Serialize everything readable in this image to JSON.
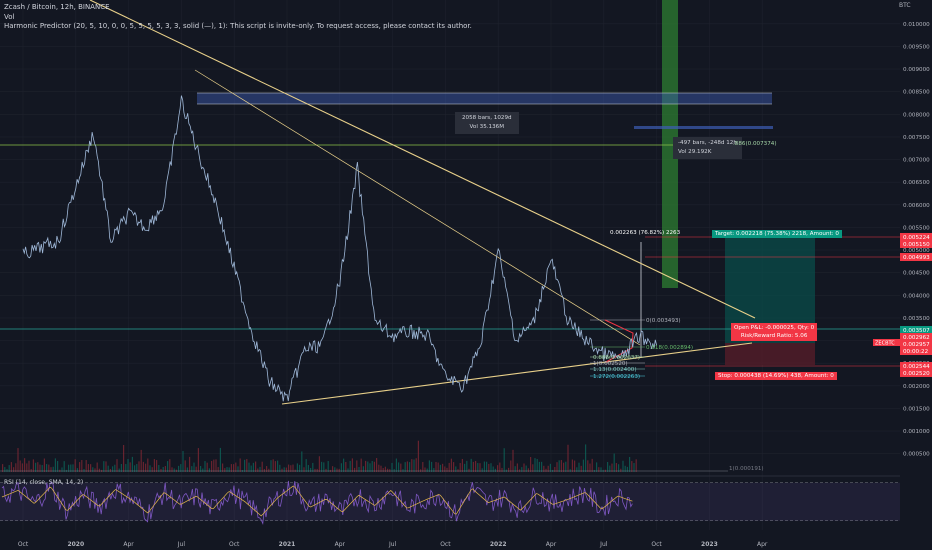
{
  "header": {
    "symbol": "Zcash / Bitcoin, 12h, BINANCE",
    "volume": "Vol",
    "indicator": "Harmonic Predictor (20, 5, 10, 0, 0, 5, 5, 5, 5, 3, 3, solid (—), 1): This script is invite-only. To request access, please contact its author."
  },
  "chart_data": {
    "type": "line",
    "symbol": "ZECBTC",
    "price_axis": {
      "unit": "BTC",
      "ticks": [
        "0.010000",
        "0.009500",
        "0.009000",
        "0.008500",
        "0.008000",
        "0.007500",
        "0.007000",
        "0.006500",
        "0.006000",
        "0.005500",
        "0.005000",
        "0.004500",
        "0.004000",
        "0.003500",
        "0.003000",
        "0.002500",
        "0.002000",
        "0.001500",
        "0.001000",
        "0.000500"
      ],
      "ylim": [
        0.00025,
        0.01035
      ]
    },
    "time_axis": {
      "ticks": [
        "Oct",
        "2020",
        "Apr",
        "Jul",
        "Oct",
        "2021",
        "Apr",
        "Jul",
        "Oct",
        "2022",
        "Apr",
        "Jul",
        "Oct",
        "2023",
        "Apr"
      ]
    },
    "series": [
      {
        "name": "ZECBTC",
        "x": [
          "2019-10",
          "2019-12",
          "2020-01",
          "2020-02",
          "2020-03",
          "2020-04",
          "2020-05",
          "2020-06",
          "2020-07",
          "2020-08",
          "2020-09",
          "2020-10",
          "2020-11",
          "2020-12",
          "2021-01",
          "2021-02",
          "2021-03",
          "2021-04",
          "2021-05",
          "2021-06",
          "2021-07",
          "2021-08",
          "2021-09",
          "2021-10",
          "2021-11",
          "2021-12",
          "2022-01",
          "2022-02",
          "2022-03",
          "2022-04",
          "2022-05",
          "2022-06",
          "2022-07",
          "2022-08",
          "2022-09",
          "2022-10"
        ],
        "values": [
          0.0049,
          0.0052,
          0.0064,
          0.0076,
          0.0052,
          0.0058,
          0.0055,
          0.006,
          0.0083,
          0.0071,
          0.006,
          0.0046,
          0.0032,
          0.0021,
          0.0017,
          0.0028,
          0.0029,
          0.0043,
          0.0068,
          0.0034,
          0.0031,
          0.0032,
          0.0031,
          0.0022,
          0.002,
          0.0029,
          0.005,
          0.003,
          0.0034,
          0.0048,
          0.0034,
          0.003,
          0.0027,
          0.0026,
          0.0031,
          0.0029
        ]
      }
    ],
    "annotations": {
      "range_box_1": {
        "bars": "2058 bars, 1029d",
        "volume": "Vol 35.136M"
      },
      "range_box_2": {
        "bars": "-497 bars, -248d 12h",
        "volume": "Vol 29.192K"
      },
      "fib_level_label": ".886(0.007374)",
      "measure_label": "0.002263 (76.82%) 2263",
      "target_label": "Target: 0.002218 (75.38%) 2218, Amount: 0",
      "open_pnl_label": "Open P&L: -0.000025, Qty: 0",
      "risk_reward_label": "Risk/Reward Ratio: 5.06",
      "stop_label": "Stop: 0.000438 (14.69%) 438, Amount: 0",
      "fib_retracements": [
        "0(0.003493)",
        "0.618(0.002894)",
        "0.886(0.002637)",
        "1(0.002520)",
        "1.13(0.002400)",
        "1.272(0.002263)"
      ],
      "volume_ref_label": "1(0.000191)"
    },
    "price_tags": [
      {
        "value": "0.005224",
        "color": "#f23645"
      },
      {
        "value": "0.005150",
        "color": "#f23645"
      },
      {
        "value": "0.004993",
        "color": "#f23645"
      },
      {
        "value": "0.003507",
        "color": "#089981"
      },
      {
        "value": "0.002962",
        "color": "#f23645"
      },
      {
        "value": "0.002957",
        "color": "#f23645"
      },
      {
        "value": "00:00:22",
        "color": "#f23645"
      },
      {
        "value": "0.002544",
        "color": "#f23645"
      },
      {
        "value": "0.002520",
        "color": "#f23645"
      }
    ],
    "current_tag": "ZECBTC",
    "rsi": {
      "label": "RSI (14, close, SMA, 14, 2)",
      "ticks": [
        "60.00",
        "40.00",
        "20.00"
      ],
      "ylim": [
        15,
        75
      ],
      "bands": [
        70,
        30
      ],
      "values": [
        55,
        62,
        48,
        66,
        40,
        58,
        45,
        63,
        52,
        38,
        60,
        47,
        56,
        42,
        61,
        50,
        35,
        54,
        67,
        44,
        53,
        39,
        57,
        46,
        62,
        43,
        51,
        58,
        36,
        64,
        49,
        55,
        41,
        59,
        47,
        53,
        60,
        42,
        56,
        50
      ]
    },
    "volume": {
      "reference": 0.000191
    }
  },
  "colors": {
    "background": "#131722",
    "price_line": "#9fb8d8",
    "trendline": "#e8d08a",
    "up": "#089981",
    "down": "#f23645",
    "rsi_line": "#7e57c2",
    "rsi_signal": "#e5b84a",
    "range_box": "#3d5eb5",
    "green_bar": "#2e7d32"
  }
}
